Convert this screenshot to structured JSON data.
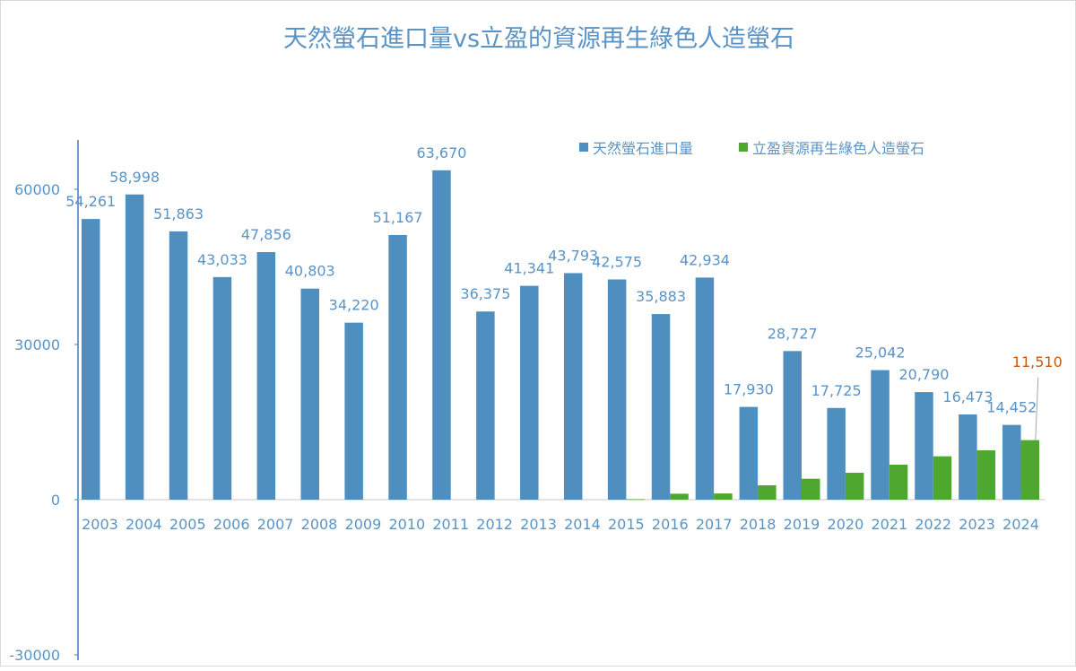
{
  "chart_data": {
    "type": "bar",
    "title": "天然螢石進口量vs立盈的資源再生綠色人造螢石",
    "xlabel": "",
    "ylabel": "",
    "ylim": [
      -30000,
      69500
    ],
    "yticks": [
      -30000,
      0,
      30000,
      60000
    ],
    "ytick_labels": [
      "-30000",
      "0",
      "30000",
      "60000"
    ],
    "categories": [
      "2003",
      "2004",
      "2005",
      "2006",
      "2007",
      "2008",
      "2009",
      "2010",
      "2011",
      "2012",
      "2013",
      "2014",
      "2015",
      "2016",
      "2017",
      "2018",
      "2019",
      "2020",
      "2021",
      "2022",
      "2023",
      "2024"
    ],
    "series": [
      {
        "name": "天然螢石進口量",
        "color": "#4f8fc0",
        "values": [
          54261,
          58998,
          51863,
          43033,
          47856,
          40803,
          34220,
          51167,
          63670,
          36375,
          41341,
          43793,
          42575,
          35883,
          42934,
          17930,
          28727,
          17725,
          25042,
          20790,
          16473,
          14452
        ],
        "labels": [
          "54,261",
          "58,998",
          "51,863",
          "43,033",
          "47,856",
          "40,803",
          "34,220",
          "51,167",
          "63,670",
          "36,375",
          "41,341",
          "43,793",
          "42,575",
          "35,883",
          "42,934",
          "17,930",
          "28,727",
          "17,725",
          "25,042",
          "20,790",
          "16,473",
          "14,452"
        ]
      },
      {
        "name": "立盈資源再生綠色人造螢石",
        "color": "#4ea72e",
        "values": [
          0,
          0,
          0,
          0,
          0,
          0,
          0,
          0,
          0,
          0,
          0,
          0,
          100,
          1150,
          1200,
          2770,
          4040,
          5200,
          6760,
          8380,
          9540,
          11510
        ],
        "labels": [
          "",
          "",
          "",
          "",
          "",
          "",
          "",
          "",
          "",
          "",
          "",
          "",
          "",
          "",
          "",
          "",
          "",
          "",
          "",
          "",
          "",
          "11,510"
        ],
        "label_color": "#c55a11"
      }
    ],
    "legend": "top-right",
    "grid": false
  }
}
